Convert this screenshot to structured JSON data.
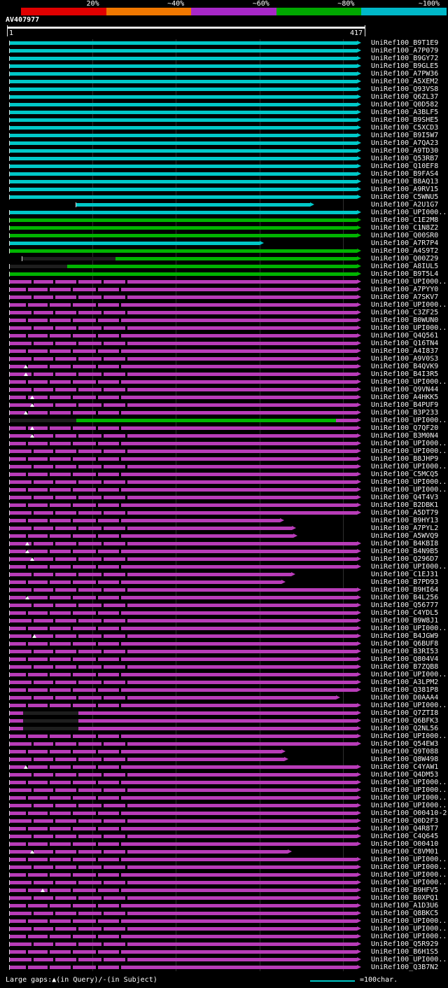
{
  "scale_bar": {
    "labels": [
      "20%",
      "~40%",
      "~60%",
      "~80%",
      "~100%"
    ],
    "colors": [
      "#e00000",
      "#f07800",
      "#a828c8",
      "#00a800",
      "#00b8c8"
    ]
  },
  "query": {
    "name": "AV407977",
    "start": "1",
    "end": "417"
  },
  "footer": {
    "legend": "Large gaps:▲(in Query)/-(in Subject)",
    "scale_text": "=100char.",
    "scale_color": "#00c8c8"
  },
  "chart_data": {
    "type": "bar",
    "variant": "sequence-alignment-overview",
    "orientation": "horizontal",
    "xlim": [
      1,
      417
    ],
    "grid_x": [
      100,
      200,
      300,
      400
    ],
    "colors": {
      "cyan": "#00c8c8",
      "green": "#00b400",
      "magenta": "#b83cb8",
      "dark": "#1e1e1e"
    },
    "rows": [
      {
        "label": "UniRef100_B9T1E9",
        "color": "cyan",
        "s": 1,
        "e": 417
      },
      {
        "label": "UniRef100_A7P079",
        "color": "cyan",
        "s": 1,
        "e": 417
      },
      {
        "label": "UniRef100_B9GY72",
        "color": "cyan",
        "s": 1,
        "e": 417
      },
      {
        "label": "UniRef100_B9GLE5",
        "color": "cyan",
        "s": 1,
        "e": 417
      },
      {
        "label": "UniRef100_A7PW36",
        "color": "cyan",
        "s": 1,
        "e": 417
      },
      {
        "label": "UniRef100_A5XEM2",
        "color": "cyan",
        "s": 1,
        "e": 417
      },
      {
        "label": "UniRef100_Q93VS8",
        "color": "cyan",
        "s": 1,
        "e": 417
      },
      {
        "label": "UniRef100_Q6ZL37",
        "color": "cyan",
        "s": 1,
        "e": 417
      },
      {
        "label": "UniRef100_Q0D582",
        "color": "cyan",
        "s": 1,
        "e": 417
      },
      {
        "label": "UniRef100_A3BLF5",
        "color": "cyan",
        "s": 1,
        "e": 417
      },
      {
        "label": "UniRef100_B9SHE5",
        "color": "cyan",
        "s": 1,
        "e": 417
      },
      {
        "label": "UniRef100_C5XCD3",
        "color": "cyan",
        "s": 1,
        "e": 417
      },
      {
        "label": "UniRef100_B9I5W7",
        "color": "cyan",
        "s": 1,
        "e": 417
      },
      {
        "label": "UniRef100_A7QA23",
        "color": "cyan",
        "s": 1,
        "e": 417
      },
      {
        "label": "UniRef100_A9TD30",
        "color": "cyan",
        "s": 1,
        "e": 417
      },
      {
        "label": "UniRef100_Q53RB7",
        "color": "cyan",
        "s": 1,
        "e": 417
      },
      {
        "label": "UniRef100_Q10EF8",
        "color": "cyan",
        "s": 1,
        "e": 417
      },
      {
        "label": "UniRef100_B9FAS4",
        "color": "cyan",
        "s": 1,
        "e": 417
      },
      {
        "label": "UniRef100_B8AQ13",
        "color": "cyan",
        "s": 1,
        "e": 417
      },
      {
        "label": "UniRef100_A9RV15",
        "color": "cyan",
        "s": 1,
        "e": 417
      },
      {
        "label": "UniRef100_C5WNU5",
        "color": "cyan",
        "s": 1,
        "e": 417
      },
      {
        "label": "UniRef100_A2U1G7",
        "color": "cyan",
        "s": 81,
        "e": 361
      },
      {
        "label": "UniRef100_UPI000..",
        "color": "cyan",
        "s": 1,
        "e": 417
      },
      {
        "label": "UniRef100_C1E2M8",
        "color": "green",
        "s": 1,
        "e": 417
      },
      {
        "label": "UniRef100_C1N8Z2",
        "color": "green",
        "s": 1,
        "e": 417
      },
      {
        "label": "UniRef100_Q00SR0",
        "color": "green",
        "s": 1,
        "e": 417
      },
      {
        "label": "UniRef100_A7R7P4",
        "color": "cyan",
        "s": 1,
        "e": 300
      },
      {
        "label": "UniRef100_A4S9T2",
        "color": "green",
        "s": 1,
        "e": 417
      },
      {
        "label": "UniRef100_Q00Z29",
        "color": "green",
        "s": 16,
        "e": 417,
        "segs": [
          {
            "s": 16,
            "e": 128,
            "c": "dark"
          },
          {
            "s": 128,
            "e": 417,
            "c": "green"
          }
        ]
      },
      {
        "label": "UniRef100_A8IUL5",
        "color": "green",
        "s": 1,
        "e": 417,
        "segs": [
          {
            "s": 1,
            "e": 70,
            "c": "dark"
          },
          {
            "s": 70,
            "e": 417,
            "c": "green"
          }
        ]
      },
      {
        "label": "UniRef100_B9T5L4",
        "color": "green",
        "s": 1,
        "e": 417
      },
      {
        "label": "UniRef100_UPI000..",
        "color": "magenta",
        "s": 1,
        "e": 417,
        "tex": 1
      },
      {
        "label": "UniRef100_A7PYY0",
        "color": "magenta",
        "s": 1,
        "e": 417,
        "tex": 1
      },
      {
        "label": "UniRef100_A7SKV7",
        "color": "magenta",
        "s": 1,
        "e": 417,
        "tex": 1
      },
      {
        "label": "UniRef100_UPI000..",
        "color": "magenta",
        "s": 1,
        "e": 417,
        "tex": 1
      },
      {
        "label": "UniRef100_C3ZF25",
        "color": "magenta",
        "s": 1,
        "e": 417,
        "tex": 1
      },
      {
        "label": "UniRef100_B0WUN0",
        "color": "magenta",
        "s": 1,
        "e": 417,
        "tex": 1
      },
      {
        "label": "UniRef100_UPI000..",
        "color": "magenta",
        "s": 1,
        "e": 417,
        "tex": 1
      },
      {
        "label": "UniRef100_Q4Q561",
        "color": "magenta",
        "s": 1,
        "e": 417,
        "tex": 1
      },
      {
        "label": "UniRef100_Q16TN4",
        "color": "magenta",
        "s": 1,
        "e": 417,
        "tex": 1
      },
      {
        "label": "UniRef100_A4I837",
        "color": "magenta",
        "s": 1,
        "e": 417,
        "tex": 1
      },
      {
        "label": "UniRef100_A9V0S3",
        "color": "magenta",
        "s": 1,
        "e": 417,
        "tex": 1
      },
      {
        "label": "UniRef100_B4QVK9",
        "color": "magenta",
        "s": 1,
        "e": 417,
        "tex": 1,
        "tri": [
          20
        ]
      },
      {
        "label": "UniRef100_B4I3R5",
        "color": "magenta",
        "s": 1,
        "e": 417,
        "tex": 1,
        "tri": [
          20
        ]
      },
      {
        "label": "UniRef100_UPI000..",
        "color": "magenta",
        "s": 1,
        "e": 417,
        "tex": 1
      },
      {
        "label": "UniRef100_Q9VN44",
        "color": "magenta",
        "s": 1,
        "e": 417,
        "tex": 1
      },
      {
        "label": "UniRef100_A4HKK5",
        "color": "magenta",
        "s": 1,
        "e": 417,
        "tex": 1,
        "tri": [
          28
        ]
      },
      {
        "label": "UniRef100_B4PUF9",
        "color": "magenta",
        "s": 1,
        "e": 417,
        "tex": 1,
        "tri": [
          28
        ]
      },
      {
        "label": "UniRef100_B3P233",
        "color": "magenta",
        "s": 1,
        "e": 417,
        "tex": 1,
        "tri": [
          20
        ]
      },
      {
        "label": "UniRef100_UPI000..",
        "color": "green",
        "s": 1,
        "e": 417,
        "segs": [
          {
            "s": 1,
            "e": 81,
            "c": "dark"
          },
          {
            "s": 81,
            "e": 392,
            "c": "green"
          },
          {
            "s": 392,
            "e": 417,
            "c": "magenta"
          }
        ]
      },
      {
        "label": "UniRef100_Q7QF20",
        "color": "magenta",
        "s": 1,
        "e": 417,
        "tex": 1,
        "tri": [
          28
        ]
      },
      {
        "label": "UniRef100_B3M0N4",
        "color": "magenta",
        "s": 1,
        "e": 417,
        "tex": 1,
        "tri": [
          28
        ]
      },
      {
        "label": "UniRef100_UPI000..",
        "color": "magenta",
        "s": 1,
        "e": 417,
        "tex": 1
      },
      {
        "label": "UniRef100_UPI000..",
        "color": "magenta",
        "s": 1,
        "e": 417,
        "tex": 1
      },
      {
        "label": "UniRef100_B8JHP9",
        "color": "magenta",
        "s": 1,
        "e": 417,
        "tex": 1
      },
      {
        "label": "UniRef100_UPI000..",
        "color": "magenta",
        "s": 1,
        "e": 417,
        "tex": 1
      },
      {
        "label": "UniRef100_C5MCQ5",
        "color": "magenta",
        "s": 1,
        "e": 417,
        "tex": 1
      },
      {
        "label": "UniRef100_UPI000..",
        "color": "magenta",
        "s": 1,
        "e": 417,
        "tex": 1
      },
      {
        "label": "UniRef100_UPI000..",
        "color": "magenta",
        "s": 1,
        "e": 417,
        "tex": 1
      },
      {
        "label": "UniRef100_Q4T4V3",
        "color": "magenta",
        "s": 1,
        "e": 417,
        "tex": 1
      },
      {
        "label": "UniRef100_B2DBK1",
        "color": "magenta",
        "s": 1,
        "e": 417,
        "tex": 1
      },
      {
        "label": "UniRef100_A5DT79",
        "color": "magenta",
        "s": 1,
        "e": 417,
        "tex": 1
      },
      {
        "label": "UniRef100_B9HY13",
        "color": "magenta",
        "s": 1,
        "e": 325,
        "tex": 1
      },
      {
        "label": "UniRef100_A7PYL2",
        "color": "magenta",
        "s": 1,
        "e": 339,
        "tex": 1
      },
      {
        "label": "UniRef100_A5WVQ9",
        "color": "magenta",
        "s": 1,
        "e": 341,
        "tex": 1
      },
      {
        "label": "UniRef100_B4KBI8",
        "color": "magenta",
        "s": 1,
        "e": 417,
        "tex": 1,
        "tri": [
          22
        ]
      },
      {
        "label": "UniRef100_B4N9B5",
        "color": "magenta",
        "s": 1,
        "e": 417,
        "tex": 1,
        "tri": [
          22
        ]
      },
      {
        "label": "UniRef100_Q296D7",
        "color": "magenta",
        "s": 1,
        "e": 417,
        "tex": 1,
        "tri": [
          28
        ]
      },
      {
        "label": "UniRef100_UPI000..",
        "color": "magenta",
        "s": 1,
        "e": 417,
        "tex": 1
      },
      {
        "label": "UniRef100_C1EJ31",
        "color": "magenta",
        "s": 1,
        "e": 338,
        "tex": 1
      },
      {
        "label": "UniRef100_B7PD93",
        "color": "magenta",
        "s": 1,
        "e": 326,
        "tex": 1
      },
      {
        "label": "UniRef100_B9HI64",
        "color": "magenta",
        "s": 1,
        "e": 417,
        "tex": 1
      },
      {
        "label": "UniRef100_B4L256",
        "color": "magenta",
        "s": 1,
        "e": 417,
        "tex": 1,
        "tri": [
          22
        ]
      },
      {
        "label": "UniRef100_Q56777",
        "color": "magenta",
        "s": 1,
        "e": 417,
        "tex": 1
      },
      {
        "label": "UniRef100_C4YDL5",
        "color": "magenta",
        "s": 1,
        "e": 417,
        "tex": 1
      },
      {
        "label": "UniRef100_B9W8J1",
        "color": "magenta",
        "s": 1,
        "e": 417,
        "tex": 1
      },
      {
        "label": "UniRef100_UPI000..",
        "color": "magenta",
        "s": 1,
        "e": 417,
        "tex": 1
      },
      {
        "label": "UniRef100_B4JGW9",
        "color": "magenta",
        "s": 1,
        "e": 417,
        "tex": 1,
        "tri": [
          30
        ]
      },
      {
        "label": "UniRef100_Q6BUF8",
        "color": "magenta",
        "s": 1,
        "e": 417,
        "tex": 1
      },
      {
        "label": "UniRef100_B3RI53",
        "color": "magenta",
        "s": 1,
        "e": 417,
        "tex": 1
      },
      {
        "label": "UniRef100_Q804V4",
        "color": "magenta",
        "s": 1,
        "e": 417,
        "tex": 1
      },
      {
        "label": "UniRef100_B7ZQB8",
        "color": "magenta",
        "s": 1,
        "e": 417,
        "tex": 1
      },
      {
        "label": "UniRef100_UPI000..",
        "color": "magenta",
        "s": 1,
        "e": 417,
        "tex": 1
      },
      {
        "label": "UniRef100_A3LPM2",
        "color": "magenta",
        "s": 1,
        "e": 417,
        "tex": 1
      },
      {
        "label": "UniRef100_Q381P8",
        "color": "magenta",
        "s": 1,
        "e": 417,
        "tex": 1
      },
      {
        "label": "UniRef100_D0AAA4",
        "color": "magenta",
        "s": 1,
        "e": 392,
        "tex": 1
      },
      {
        "label": "UniRef100_UPI000..",
        "color": "magenta",
        "s": 1,
        "e": 417,
        "tex": 1
      },
      {
        "label": "UniRef100_Q7ZTI8",
        "color": "magenta",
        "s": 1,
        "e": 417,
        "segs": [
          {
            "s": 1,
            "e": 17,
            "c": "magenta"
          },
          {
            "s": 17,
            "e": 83,
            "c": "dark"
          },
          {
            "s": 83,
            "e": 417,
            "c": "magenta"
          }
        ]
      },
      {
        "label": "UniRef100_Q6BFK3",
        "color": "magenta",
        "s": 1,
        "e": 417,
        "segs": [
          {
            "s": 1,
            "e": 17,
            "c": "magenta"
          },
          {
            "s": 17,
            "e": 83,
            "c": "dark"
          },
          {
            "s": 83,
            "e": 417,
            "c": "magenta"
          }
        ]
      },
      {
        "label": "UniRef100_Q2NL56",
        "color": "magenta",
        "s": 1,
        "e": 417,
        "segs": [
          {
            "s": 1,
            "e": 17,
            "c": "magenta"
          },
          {
            "s": 17,
            "e": 83,
            "c": "dark"
          },
          {
            "s": 83,
            "e": 417,
            "c": "magenta"
          }
        ]
      },
      {
        "label": "UniRef100_UPI000..",
        "color": "magenta",
        "s": 1,
        "e": 417,
        "tex": 1
      },
      {
        "label": "UniRef100_Q54EW3",
        "color": "magenta",
        "s": 1,
        "e": 417,
        "tex": 1
      },
      {
        "label": "UniRef100_Q9T088",
        "color": "magenta",
        "s": 1,
        "e": 326,
        "tex": 1
      },
      {
        "label": "UniRef100_Q8W498",
        "color": "magenta",
        "s": 1,
        "e": 330,
        "tex": 1
      },
      {
        "label": "UniRef100_C4YAW1",
        "color": "magenta",
        "s": 1,
        "e": 417,
        "tex": 1,
        "tri": [
          20
        ]
      },
      {
        "label": "UniRef100_Q4DM53",
        "color": "magenta",
        "s": 1,
        "e": 417,
        "tex": 1
      },
      {
        "label": "UniRef100_UPI000..",
        "color": "magenta",
        "s": 1,
        "e": 417,
        "tex": 1
      },
      {
        "label": "UniRef100_UPI000..",
        "color": "magenta",
        "s": 1,
        "e": 417,
        "tex": 1
      },
      {
        "label": "UniRef100_UPI000..",
        "color": "magenta",
        "s": 1,
        "e": 417,
        "tex": 1
      },
      {
        "label": "UniRef100_UPI000..",
        "color": "magenta",
        "s": 1,
        "e": 417,
        "tex": 1
      },
      {
        "label": "UniRef100_O00410-2",
        "color": "magenta",
        "s": 1,
        "e": 417,
        "tex": 1
      },
      {
        "label": "UniRef100_Q0D2F3",
        "color": "magenta",
        "s": 1,
        "e": 417,
        "tex": 1
      },
      {
        "label": "UniRef100_Q4R8T7",
        "color": "magenta",
        "s": 1,
        "e": 417,
        "tex": 1
      },
      {
        "label": "UniRef100_C4Q645",
        "color": "magenta",
        "s": 1,
        "e": 417,
        "tex": 1
      },
      {
        "label": "UniRef100_O00410",
        "color": "magenta",
        "s": 1,
        "e": 417,
        "tex": 1
      },
      {
        "label": "UniRef100_C8VM01",
        "color": "magenta",
        "s": 1,
        "e": 334,
        "tex": 1,
        "tri": [
          28
        ]
      },
      {
        "label": "UniRef100_UPI000..",
        "color": "magenta",
        "s": 1,
        "e": 417,
        "tex": 1
      },
      {
        "label": "UniRef100_UPI000..",
        "color": "magenta",
        "s": 1,
        "e": 417,
        "tex": 1
      },
      {
        "label": "UniRef100_UPI000..",
        "color": "magenta",
        "s": 1,
        "e": 417,
        "tex": 1
      },
      {
        "label": "UniRef100_UPI000..",
        "color": "magenta",
        "s": 1,
        "e": 417,
        "tex": 1
      },
      {
        "label": "UniRef100_B9HFV5",
        "color": "magenta",
        "s": 1,
        "e": 417,
        "tex": 1,
        "tri": [
          40
        ]
      },
      {
        "label": "UniRef100_B0XPQ1",
        "color": "magenta",
        "s": 1,
        "e": 417,
        "tex": 1
      },
      {
        "label": "UniRef100_A1D3U6",
        "color": "magenta",
        "s": 1,
        "e": 417,
        "tex": 1
      },
      {
        "label": "UniRef100_Q8BKC5",
        "color": "magenta",
        "s": 1,
        "e": 417,
        "tex": 1
      },
      {
        "label": "UniRef100_UPI000..",
        "color": "magenta",
        "s": 1,
        "e": 417,
        "tex": 1
      },
      {
        "label": "UniRef100_UPI000..",
        "color": "magenta",
        "s": 1,
        "e": 417,
        "tex": 1
      },
      {
        "label": "UniRef100_UPI000..",
        "color": "magenta",
        "s": 1,
        "e": 417,
        "tex": 1
      },
      {
        "label": "UniRef100_Q5R929",
        "color": "magenta",
        "s": 1,
        "e": 417,
        "tex": 1
      },
      {
        "label": "UniRef100_B6H1S5",
        "color": "magenta",
        "s": 1,
        "e": 417,
        "tex": 1
      },
      {
        "label": "UniRef100_UPI000..",
        "color": "magenta",
        "s": 1,
        "e": 417,
        "tex": 1
      },
      {
        "label": "UniRef100_Q3B7N2",
        "color": "magenta",
        "s": 1,
        "e": 417,
        "tex": 1
      }
    ]
  }
}
